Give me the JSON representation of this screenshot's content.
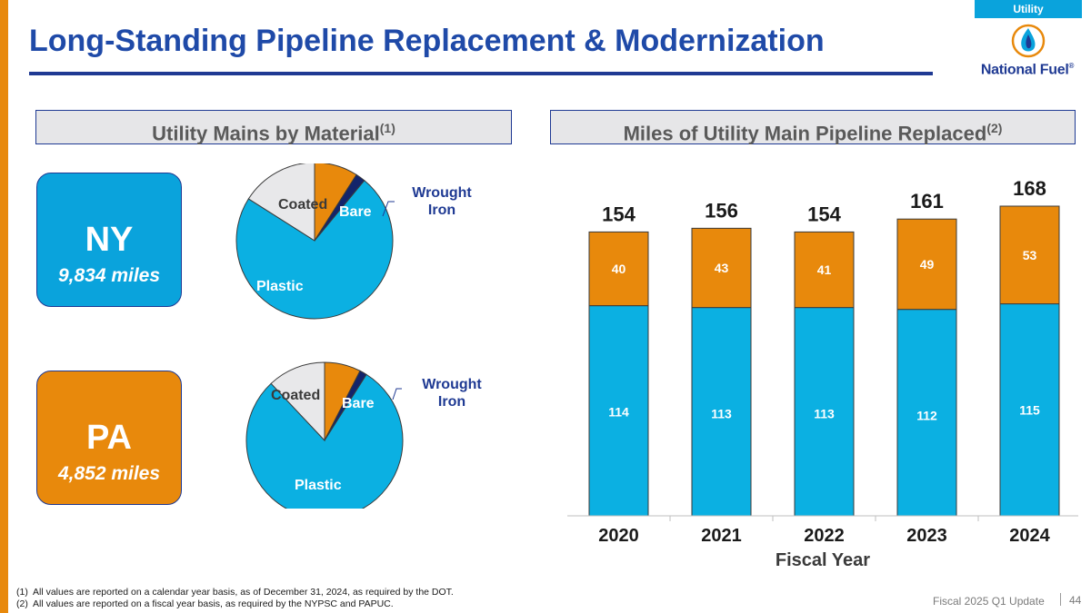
{
  "tag": "Utility",
  "title": "Long-Standing Pipeline Replacement & Modernization",
  "logo_text": "National Fuel",
  "logo_mark": "®",
  "colors": {
    "navy": "#1f3a93",
    "blue": "#0aa3dc",
    "plastic": "#0bb0e2",
    "orange": "#e8890c",
    "coated": "#e8e8ea",
    "wrought": "#13246b"
  },
  "left_header": {
    "text": "Utility Mains by Material",
    "sup": "(1)"
  },
  "right_header": {
    "text": "Miles of Utility Main Pipeline Replaced",
    "sup": "(2)"
  },
  "ny": {
    "name": "NY",
    "miles": "9,834 miles"
  },
  "pa": {
    "name": "PA",
    "miles": "4,852 miles"
  },
  "pie_labels": {
    "plastic": "Plastic",
    "coated": "Coated",
    "bare": "Bare",
    "wrought_line1": "Wrought",
    "wrought_line2": "Iron"
  },
  "chart_data": [
    {
      "type": "pie",
      "state": "NY",
      "slices": [
        {
          "label": "Plastic",
          "value": 0.73
        },
        {
          "label": "Coated",
          "value": 0.16
        },
        {
          "label": "Bare",
          "value": 0.09
        },
        {
          "label": "Wrought Iron",
          "value": 0.02
        }
      ]
    },
    {
      "type": "pie",
      "state": "PA",
      "slices": [
        {
          "label": "Plastic",
          "value": 0.79
        },
        {
          "label": "Coated",
          "value": 0.12
        },
        {
          "label": "Bare",
          "value": 0.075
        },
        {
          "label": "Wrought Iron",
          "value": 0.015
        }
      ]
    },
    {
      "type": "bar",
      "stacked": true,
      "categories": [
        "2020",
        "2021",
        "2022",
        "2023",
        "2024"
      ],
      "series": [
        {
          "values": [
            114,
            113,
            113,
            112,
            115
          ]
        },
        {
          "values": [
            40,
            43,
            41,
            49,
            53
          ]
        }
      ],
      "totals": [
        154,
        156,
        154,
        161,
        168
      ],
      "xlabel": "Fiscal Year",
      "ylabel": "",
      "ylim": [
        0,
        168
      ]
    }
  ],
  "footnotes": [
    {
      "num": "(1)",
      "text": "All values are reported on a calendar year basis, as of December 31, 2024, as required by the DOT."
    },
    {
      "num": "(2)",
      "text": "All values are reported on a fiscal year basis, as required by the NYPSC and PAPUC."
    }
  ],
  "footer": {
    "label": "Fiscal 2025 Q1 Update",
    "page": "44"
  }
}
